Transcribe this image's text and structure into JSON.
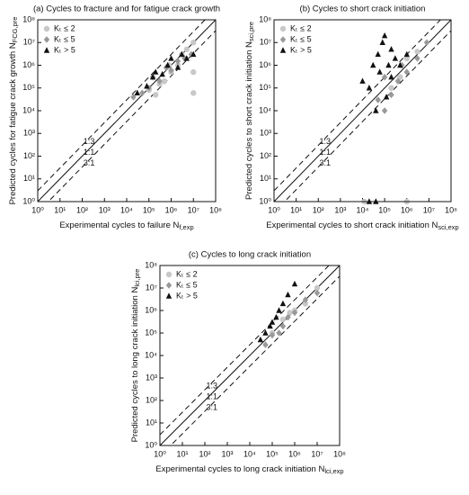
{
  "chart_data": [
    {
      "type": "scatter",
      "title": "(a) Cycles to fracture and for fatigue crack growth",
      "x_label": "Experimental cycles to failure N",
      "x_label_sub": "f,exp",
      "y_label": "Predicted cycles for fatigue crack growth N",
      "y_label_sub": "FCG,pre",
      "log_x": true,
      "log_y": true,
      "xlim": [
        1,
        100000000.0
      ],
      "ylim": [
        1,
        100000000.0
      ],
      "xticks": [
        {
          "value": 1,
          "label": "10⁰"
        },
        {
          "value": 10,
          "label": "10¹"
        },
        {
          "value": 100,
          "label": "10²"
        },
        {
          "value": 1000,
          "label": "10³"
        },
        {
          "value": 10000.0,
          "label": "10⁴"
        },
        {
          "value": 100000.0,
          "label": "10⁵"
        },
        {
          "value": 1000000.0,
          "label": "10⁶"
        },
        {
          "value": 10000000.0,
          "label": "10⁷"
        },
        {
          "value": 100000000.0,
          "label": "10⁸"
        }
      ],
      "yticks": [
        {
          "value": 1,
          "label": "10⁰"
        },
        {
          "value": 10,
          "label": "10¹"
        },
        {
          "value": 100,
          "label": "10²"
        },
        {
          "value": 1000,
          "label": "10³"
        },
        {
          "value": 10000.0,
          "label": "10⁴"
        },
        {
          "value": 100000.0,
          "label": "10⁵"
        },
        {
          "value": 1000000.0,
          "label": "10⁶"
        },
        {
          "value": 10000000.0,
          "label": "10⁷"
        },
        {
          "value": 100000000.0,
          "label": "10⁸"
        }
      ],
      "legend": "upper left",
      "reference_lines": [
        {
          "label": "1:3",
          "factor": 3,
          "style": "dashed"
        },
        {
          "label": "1:1",
          "factor": 1,
          "style": "solid"
        },
        {
          "label": "3:1",
          "factor": 0.3333,
          "style": "dashed"
        }
      ],
      "series": [
        {
          "name": "Kₜ ≤ 2",
          "color": "#c8c8c8",
          "marker": "circle",
          "x": [
            100000.0,
            200000.0,
            500000.0,
            1000000.0,
            2000000.0,
            5000000.0,
            10000000.0,
            10000000.0,
            10000000.0,
            3000000.0,
            800000.0,
            300000.0
          ],
          "values": [
            80000.0,
            50000.0,
            200000.0,
            500000.0,
            1000000.0,
            5000000.0,
            10000000.0,
            500000.0,
            60000.0,
            3000000.0,
            1000000.0,
            150000.0
          ]
        },
        {
          "name": "Kₜ ≤ 5",
          "color": "#999999",
          "marker": "diamond",
          "x": [
            20000.0,
            50000.0,
            100000.0,
            300000.0,
            600000.0,
            1000000.0,
            2000000.0,
            4000000.0,
            8000000.0,
            150000.0
          ],
          "values": [
            40000.0,
            60000.0,
            100000.0,
            200000.0,
            800000.0,
            600000.0,
            1500000.0,
            2000000.0,
            3000000.0,
            300000.0
          ]
        },
        {
          "name": "Kₜ > 5",
          "color": "#111111",
          "marker": "triangle",
          "x": [
            30000.0,
            80000.0,
            150000.0,
            200000.0,
            400000.0,
            700000.0,
            1000000.0,
            3000000.0,
            5000000.0,
            2000000.0,
            10000000.0
          ],
          "values": [
            60000.0,
            120000.0,
            300000.0,
            500000.0,
            400000.0,
            1000000.0,
            2000000.0,
            3000000.0,
            2000000.0,
            800000.0,
            3000000.0
          ]
        }
      ]
    },
    {
      "type": "scatter",
      "title": "(b) Cycles to short crack initiation",
      "x_label": "Experimental cycles to short crack initiation N",
      "x_label_sub": "sci,exp",
      "y_label": "Predicted cycles to short crack initiation N",
      "y_label_sub": "sci,pre",
      "log_x": true,
      "log_y": true,
      "xlim": [
        1,
        100000000.0
      ],
      "ylim": [
        1,
        100000000.0
      ],
      "xticks": [
        {
          "value": 1,
          "label": "10⁰"
        },
        {
          "value": 10,
          "label": "10¹"
        },
        {
          "value": 100,
          "label": "10²"
        },
        {
          "value": 1000,
          "label": "10³"
        },
        {
          "value": 10000.0,
          "label": "10⁴"
        },
        {
          "value": 100000.0,
          "label": "10⁵"
        },
        {
          "value": 1000000.0,
          "label": "10⁶"
        },
        {
          "value": 10000000.0,
          "label": "10⁷"
        },
        {
          "value": 100000000.0,
          "label": "10⁸"
        }
      ],
      "yticks": [
        {
          "value": 1,
          "label": "10⁰"
        },
        {
          "value": 10,
          "label": "10¹"
        },
        {
          "value": 100,
          "label": "10²"
        },
        {
          "value": 1000,
          "label": "10³"
        },
        {
          "value": 10000.0,
          "label": "10⁴"
        },
        {
          "value": 100000.0,
          "label": "10⁵"
        },
        {
          "value": 1000000.0,
          "label": "10⁶"
        },
        {
          "value": 10000000.0,
          "label": "10⁷"
        },
        {
          "value": 100000000.0,
          "label": "10⁸"
        }
      ],
      "legend": "upper left",
      "reference_lines": [
        {
          "label": "1:3",
          "factor": 3,
          "style": "dashed"
        },
        {
          "label": "1:1",
          "factor": 1,
          "style": "solid"
        },
        {
          "label": "3:1",
          "factor": 0.3333,
          "style": "dashed"
        }
      ],
      "series": [
        {
          "name": "Kₜ ≤ 2",
          "color": "#c8c8c8",
          "marker": "circle",
          "x": [
            200000.0,
            1000000.0,
            3000000.0,
            1000000.0,
            12000.0,
            500000.0
          ],
          "values": [
            100000.0,
            2000000.0,
            4000000.0,
            1,
            1,
            300000.0
          ]
        },
        {
          "name": "Kₜ ≤ 5",
          "color": "#999999",
          "marker": "diamond",
          "x": [
            50000.0,
            100000.0,
            200000.0,
            400000.0,
            1000000.0,
            3000000.0,
            8000000.0,
            100000.0,
            600000.0
          ],
          "values": [
            30000.0,
            10000.0,
            50000.0,
            200000.0,
            500000.0,
            2000000.0,
            10000000.0,
            300000.0,
            1000000.0
          ]
        },
        {
          "name": "Kₜ > 5",
          "color": "#111111",
          "marker": "triangle",
          "x": [
            10000.0,
            20000.0,
            30000.0,
            50000.0,
            80000.0,
            100000.0,
            150000.0,
            200000.0,
            300000.0,
            500000.0,
            1000000.0,
            200000.0,
            60000.0,
            120000.0,
            40000.0,
            20000.0,
            40000.0
          ],
          "values": [
            200000.0,
            100000.0,
            1000000.0,
            3000000.0,
            10000000.0,
            20000000.0,
            1000000.0,
            5000000.0,
            2000000.0,
            1000000.0,
            3000000.0,
            300000.0,
            500000.0,
            40000.0,
            10000.0,
            1,
            1
          ]
        }
      ]
    },
    {
      "type": "scatter",
      "title": "(c) Cycles to long crack initiation",
      "x_label": "Experimental cycles to long crack initiation N",
      "x_label_sub": "lci,exp",
      "y_label": "Predicted cycles to long crack initiation N",
      "y_label_sub": "lci,pre",
      "log_x": true,
      "log_y": true,
      "xlim": [
        1,
        100000000.0
      ],
      "ylim": [
        1,
        100000000.0
      ],
      "xticks": [
        {
          "value": 1,
          "label": "10⁰"
        },
        {
          "value": 10,
          "label": "10¹"
        },
        {
          "value": 100,
          "label": "10²"
        },
        {
          "value": 1000,
          "label": "10³"
        },
        {
          "value": 10000.0,
          "label": "10⁴"
        },
        {
          "value": 100000.0,
          "label": "10⁵"
        },
        {
          "value": 1000000.0,
          "label": "10⁶"
        },
        {
          "value": 10000000.0,
          "label": "10⁷"
        },
        {
          "value": 100000000.0,
          "label": "10⁸"
        }
      ],
      "yticks": [
        {
          "value": 1,
          "label": "10⁰"
        },
        {
          "value": 10,
          "label": "10¹"
        },
        {
          "value": 100,
          "label": "10²"
        },
        {
          "value": 1000,
          "label": "10³"
        },
        {
          "value": 10000.0,
          "label": "10⁴"
        },
        {
          "value": 100000.0,
          "label": "10⁵"
        },
        {
          "value": 1000000.0,
          "label": "10⁶"
        },
        {
          "value": 10000000.0,
          "label": "10⁷"
        },
        {
          "value": 100000000.0,
          "label": "10⁸"
        }
      ],
      "legend": "upper left",
      "reference_lines": [
        {
          "label": "1:3",
          "factor": 3,
          "style": "dashed"
        },
        {
          "label": "1:1",
          "factor": 1,
          "style": "solid"
        },
        {
          "label": "3:1",
          "factor": 0.3333,
          "style": "dashed"
        }
      ],
      "series": [
        {
          "name": "Kₜ ≤ 2",
          "color": "#c8c8c8",
          "marker": "circle",
          "x": [
            100000.0,
            300000.0,
            1000000.0,
            3000000.0,
            10000000.0,
            600000.0
          ],
          "values": [
            100000.0,
            400000.0,
            1000000.0,
            2000000.0,
            10000000.0,
            800000.0
          ]
        },
        {
          "name": "Kₜ ≤ 5",
          "color": "#999999",
          "marker": "diamond",
          "x": [
            50000.0,
            100000.0,
            200000.0,
            500000.0,
            1000000.0,
            3000000.0,
            10000000.0,
            300000.0
          ],
          "values": [
            30000.0,
            80000.0,
            100000.0,
            500000.0,
            800000.0,
            3000000.0,
            6000000.0,
            200000.0
          ]
        },
        {
          "name": "Kₜ > 5",
          "color": "#111111",
          "marker": "triangle",
          "x": [
            30000.0,
            50000.0,
            100000.0,
            200000.0,
            300000.0,
            500000.0,
            1000000.0,
            150000.0,
            80000.0
          ],
          "values": [
            50000.0,
            100000.0,
            300000.0,
            1000000.0,
            2000000.0,
            5000000.0,
            15000000.0,
            500000.0,
            200000.0
          ]
        }
      ]
    }
  ]
}
